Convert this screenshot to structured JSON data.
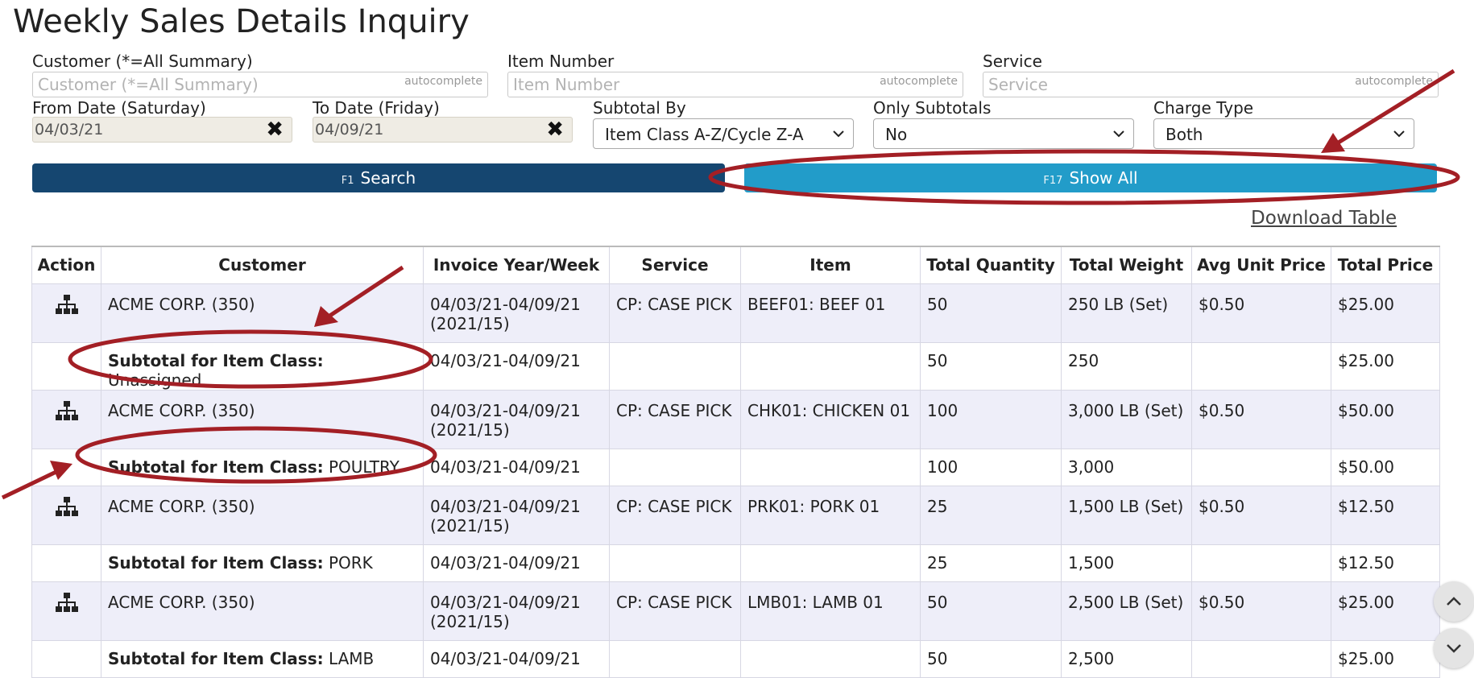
{
  "page": {
    "title": "Weekly Sales Details Inquiry"
  },
  "filters": {
    "customer": {
      "label": "Customer (*=All Summary)",
      "placeholder": "Customer (*=All Summary)",
      "hint": "autocomplete"
    },
    "item_number": {
      "label": "Item Number",
      "placeholder": "Item Number",
      "hint": "autocomplete"
    },
    "service": {
      "label": "Service",
      "placeholder": "Service",
      "hint": "autocomplete"
    },
    "from_date": {
      "label": "From Date (Saturday)",
      "value": "04/03/21"
    },
    "to_date": {
      "label": "To Date (Friday)",
      "value": "04/09/21"
    },
    "subtotal_by": {
      "label": "Subtotal By",
      "value": "Item Class A-Z/Cycle Z-A"
    },
    "only_subtotals": {
      "label": "Only Subtotals",
      "value": "No"
    },
    "charge_type": {
      "label": "Charge Type",
      "value": "Both"
    }
  },
  "buttons": {
    "search": {
      "key": "F1",
      "label": "Search",
      "color": "#154670"
    },
    "show_all": {
      "key": "F17",
      "label": "Show All",
      "color": "#229cc9"
    }
  },
  "download_label": "Download Table",
  "table": {
    "headers": [
      "Action",
      "Customer",
      "Invoice Year/Week",
      "Service",
      "Item",
      "Total Quantity",
      "Total Weight",
      "Avg Unit Price",
      "Total Price"
    ],
    "rows": [
      {
        "customer": "ACME CORP. (350)",
        "week_range": "04/03/21-04/09/21",
        "week_num": "(2021/15)",
        "service": "CP: CASE PICK",
        "item": "BEEF01: BEEF 01",
        "qty": "50",
        "weight": "250 LB (Set)",
        "avg": "$0.50",
        "total": "$25.00"
      },
      {
        "subtotal_prefix": "Subtotal for Item Class:",
        "subtotal_class": "Unassigned",
        "week_range": "04/03/21-04/09/21",
        "qty": "50",
        "weight": "250",
        "total": "$25.00"
      },
      {
        "customer": "ACME CORP. (350)",
        "week_range": "04/03/21-04/09/21",
        "week_num": "(2021/15)",
        "service": "CP: CASE PICK",
        "item": "CHK01: CHICKEN 01",
        "qty": "100",
        "weight": "3,000 LB (Set)",
        "avg": "$0.50",
        "total": "$50.00"
      },
      {
        "subtotal_prefix": "Subtotal for Item Class:",
        "subtotal_class": "POULTRY",
        "week_range": "04/03/21-04/09/21",
        "qty": "100",
        "weight": "3,000",
        "total": "$50.00"
      },
      {
        "customer": "ACME CORP. (350)",
        "week_range": "04/03/21-04/09/21",
        "week_num": "(2021/15)",
        "service": "CP: CASE PICK",
        "item": "PRK01: PORK 01",
        "qty": "25",
        "weight": "1,500 LB (Set)",
        "avg": "$0.50",
        "total": "$12.50"
      },
      {
        "subtotal_prefix": "Subtotal for Item Class:",
        "subtotal_class": "PORK",
        "week_range": "04/03/21-04/09/21",
        "qty": "25",
        "weight": "1,500",
        "total": "$12.50"
      },
      {
        "customer": "ACME CORP. (350)",
        "week_range": "04/03/21-04/09/21",
        "week_num": "(2021/15)",
        "service": "CP: CASE PICK",
        "item": "LMB01: LAMB 01",
        "qty": "50",
        "weight": "2,500 LB (Set)",
        "avg": "$0.50",
        "total": "$25.00"
      },
      {
        "subtotal_prefix": "Subtotal for Item Class:",
        "subtotal_class": "LAMB",
        "week_range": "04/03/21-04/09/21",
        "qty": "50",
        "weight": "2,500",
        "total": "$25.00"
      }
    ]
  },
  "annotation_color": "#a31f25"
}
